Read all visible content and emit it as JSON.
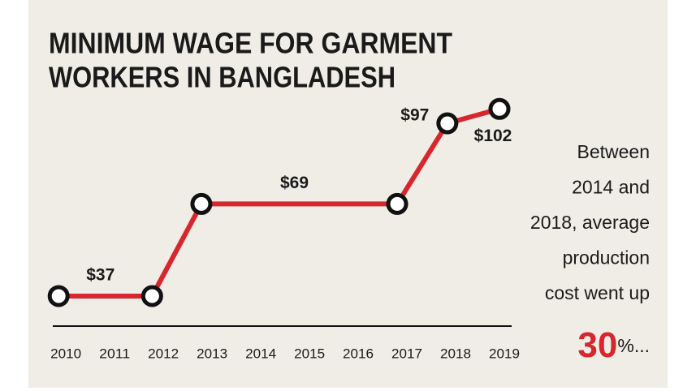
{
  "chart_data": {
    "type": "line",
    "title": [
      "MINIMUM WAGE FOR GARMENT",
      "WORKERS IN BANGLADESH"
    ],
    "x": [
      2009.85,
      2011.77,
      2012.78,
      2016.8,
      2017.83,
      2018.9
    ],
    "values": [
      37,
      37,
      69,
      69,
      97,
      102
    ],
    "value_labels": [
      "$37",
      null,
      "$69",
      null,
      "$97",
      "$102"
    ],
    "color": "#d7262e",
    "xlim": [
      2009.73,
      2019.15
    ],
    "xticks": [
      2010,
      2011,
      2012,
      2013,
      2014,
      2015,
      2016,
      2017,
      2018,
      2019
    ],
    "ylim": [
      26,
      108
    ],
    "side_note": [
      "Between",
      "2014 and",
      "2018, average",
      "production",
      "cost went up"
    ],
    "highlight": "30",
    "highlight_suffix": "%..."
  }
}
